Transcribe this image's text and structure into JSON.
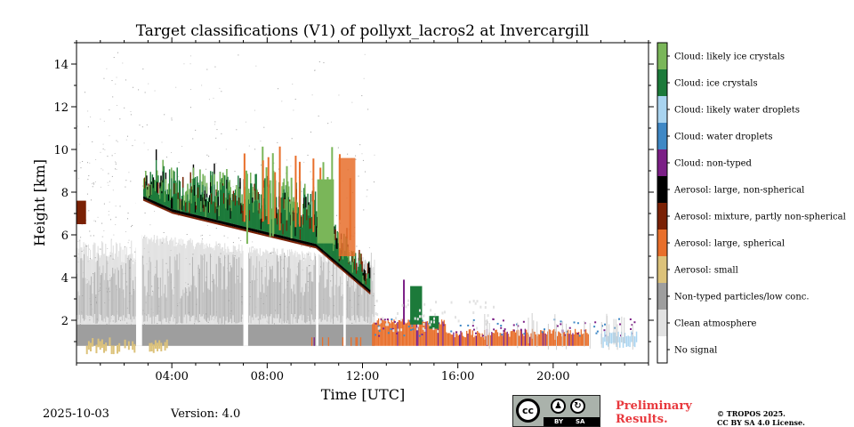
{
  "chart_data": {
    "type": "heatmap",
    "title": "Target classifications (V1) of pollyxt_lacros2 at Invercargill",
    "xlabel": "Time [UTC]",
    "ylabel": "Height [km]",
    "xlim": [
      0,
      24
    ],
    "ylim": [
      0,
      15
    ],
    "xticks": [
      4,
      8,
      12,
      16,
      20
    ],
    "xtick_labels": [
      "04:00",
      "08:00",
      "12:00",
      "16:00",
      "20:00"
    ],
    "yticks": [
      2,
      4,
      6,
      8,
      10,
      12,
      14
    ],
    "ytick_labels": [
      "2",
      "4",
      "6",
      "8",
      "10",
      "12",
      "14"
    ],
    "legend": {
      "placement": "colorbar-right",
      "entries": [
        {
          "label": "Cloud: likely ice crystals",
          "color": "#7ab659"
        },
        {
          "label": "Cloud: ice crystals",
          "color": "#1c7a3a"
        },
        {
          "label": "Cloud: likely water droplets",
          "color": "#a9d4f0"
        },
        {
          "label": "Cloud: water droplets",
          "color": "#3f88c5"
        },
        {
          "label": "Cloud: non-typed",
          "color": "#7b1f86"
        },
        {
          "label": "Aerosol: large, non-spherical",
          "color": "#000000"
        },
        {
          "label": "Aerosol: mixture, partly non-spherical",
          "color": "#7a2105"
        },
        {
          "label": "Aerosol: large, spherical",
          "color": "#e86f2b"
        },
        {
          "label": "Aerosol: small",
          "color": "#dcc27a"
        },
        {
          "label": "Non-typed particles/low conc.",
          "color": "#9e9e9e"
        },
        {
          "label": "Clean atmosphere",
          "color": "#e2e2e2"
        },
        {
          "label": "No signal",
          "color": "#ffffff"
        }
      ]
    },
    "features": [
      {
        "class": "Non-typed particles/low conc.",
        "t_start": 0.0,
        "t_end": 12.5,
        "h_bottom": 0.8,
        "h_top": 1.8
      },
      {
        "class": "Clean atmosphere",
        "t_start": 0.0,
        "t_end": 12.5,
        "h_bottom": 1.8,
        "h_top": 5.5
      },
      {
        "class": "Aerosol: small",
        "t_start": 0.0,
        "t_end": 3.8,
        "h_bottom": 0.8,
        "h_top": 1.2
      },
      {
        "class": "Aerosol: large, non-spherical",
        "t_start": 2.8,
        "t_end": 12.3,
        "h_top_start": 8.8,
        "h_top_end": 3.2
      },
      {
        "class": "Cloud: ice crystals",
        "t_start": 3.0,
        "t_end": 12.0,
        "h_bottom": 5.5,
        "h_top": 9.8
      },
      {
        "class": "Cloud: likely ice crystals",
        "t_start": 9.5,
        "t_end": 11.8,
        "h_bottom": 5.5,
        "h_top": 9.5
      },
      {
        "class": "Aerosol: large, spherical",
        "t_start": 12.5,
        "t_end": 21.5,
        "h_bottom": 0.8,
        "h_top": 1.8
      },
      {
        "class": "Cloud: ice crystals",
        "t_start": 13.8,
        "t_end": 15.2,
        "h_bottom": 1.8,
        "h_top": 4.0
      },
      {
        "class": "Cloud: likely water droplets",
        "t_start": 22.0,
        "t_end": 23.5,
        "h_bottom": 0.8,
        "h_top": 1.3
      }
    ]
  },
  "footer": {
    "date": "2025-10-03",
    "version": "Version: 4.0",
    "prelim_line1": "Preliminary",
    "prelim_line2": "Results.",
    "copyright_line1": "© TROPOS 2025.",
    "copyright_line2": "CC BY SA 4.0 License.",
    "cc_label": "cc",
    "cc_by": "BY",
    "cc_sa": "SA"
  }
}
